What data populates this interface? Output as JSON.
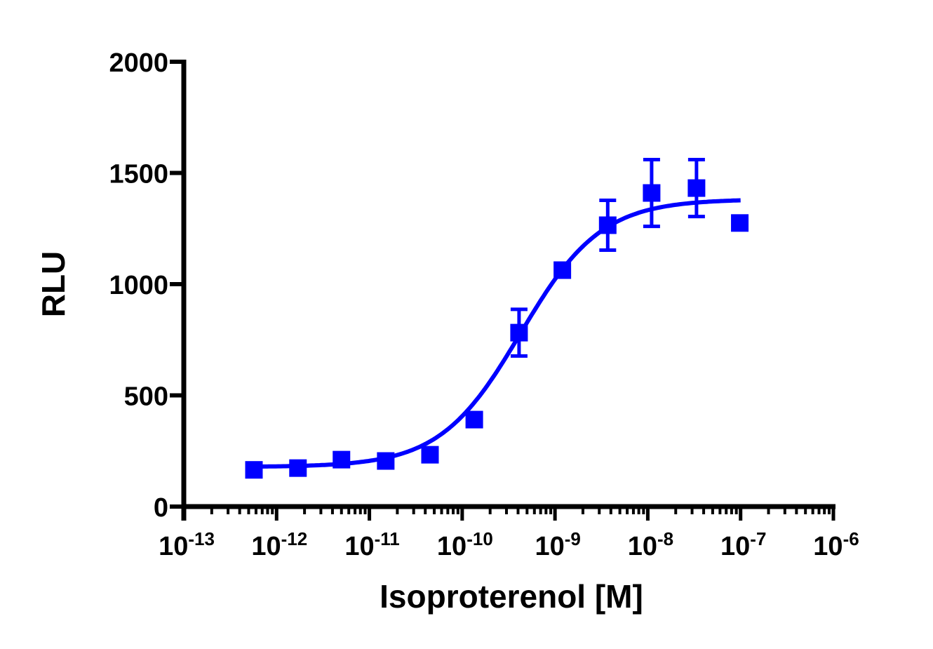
{
  "chart_data": {
    "type": "scatter",
    "title": "",
    "xlabel": "Isoproterenol [M]",
    "ylabel": "RLU",
    "x_scale": "log",
    "xlim": [
      1e-13,
      1e-06
    ],
    "ylim": [
      0,
      2000
    ],
    "x_ticks": [
      {
        "base": "10",
        "exp": "-13"
      },
      {
        "base": "10",
        "exp": "-12"
      },
      {
        "base": "10",
        "exp": "-11"
      },
      {
        "base": "10",
        "exp": "-10"
      },
      {
        "base": "10",
        "exp": "-9"
      },
      {
        "base": "10",
        "exp": "-8"
      },
      {
        "base": "10",
        "exp": "-7"
      },
      {
        "base": "10",
        "exp": "-6"
      }
    ],
    "y_ticks": [
      "0",
      "500",
      "1000",
      "1500",
      "2000"
    ],
    "y_tick_values": [
      0,
      500,
      1000,
      1500,
      2000
    ],
    "grid": false,
    "legend": "none",
    "color": "#0000ff",
    "marker": "square",
    "series": [
      {
        "points": [
          {
            "x": 5.7e-13,
            "y": 165,
            "err": 0
          },
          {
            "x": 1.7e-12,
            "y": 173,
            "err": 0
          },
          {
            "x": 5e-12,
            "y": 211,
            "err": 0
          },
          {
            "x": 1.5e-11,
            "y": 205,
            "err": 0
          },
          {
            "x": 4.5e-11,
            "y": 233,
            "err": 0
          },
          {
            "x": 1.35e-10,
            "y": 391,
            "err": 0
          },
          {
            "x": 4.1e-10,
            "y": 782,
            "err": 105
          },
          {
            "x": 1.2e-09,
            "y": 1063,
            "err": 0
          },
          {
            "x": 3.7e-09,
            "y": 1265,
            "err": 112
          },
          {
            "x": 1.1e-08,
            "y": 1410,
            "err": 150
          },
          {
            "x": 3.35e-08,
            "y": 1432,
            "err": 128
          },
          {
            "x": 9.8e-08,
            "y": 1275,
            "err": 20
          }
        ],
        "fit": {
          "model": "4PL",
          "bottom": 178,
          "top": 1382,
          "logEC50": -9.37,
          "hill": 1.0,
          "x_range": [
            5.7e-13,
            1e-07
          ]
        }
      }
    ]
  }
}
